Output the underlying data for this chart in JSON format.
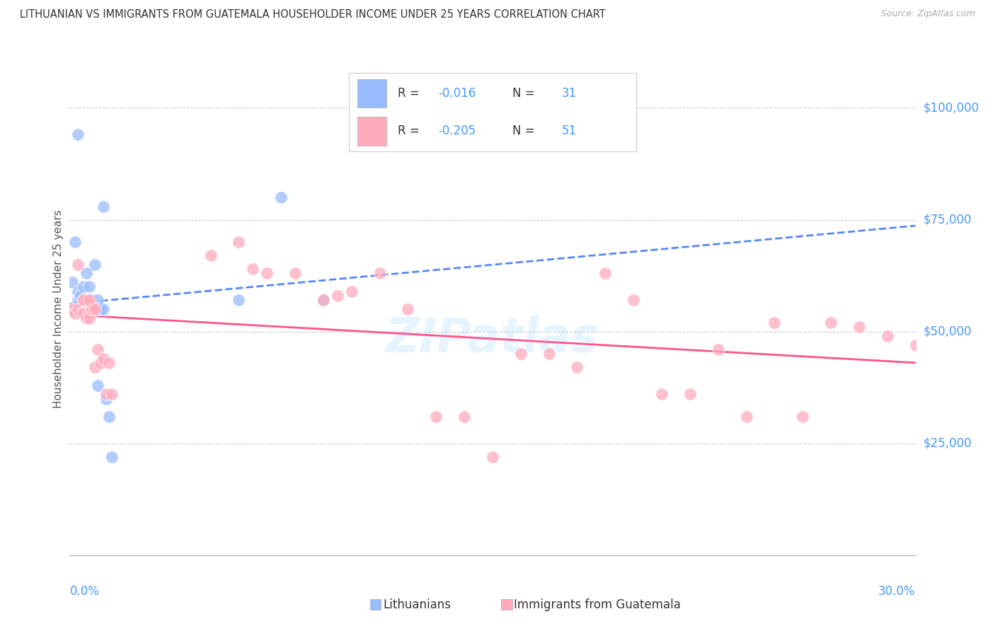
{
  "title": "LITHUANIAN VS IMMIGRANTS FROM GUATEMALA HOUSEHOLDER INCOME UNDER 25 YEARS CORRELATION CHART",
  "source": "Source: ZipAtlas.com",
  "ylabel": "Householder Income Under 25 years",
  "xlim": [
    0.0,
    0.3
  ],
  "ylim": [
    0,
    110000
  ],
  "ytick_positions": [
    25000,
    50000,
    75000,
    100000
  ],
  "ytick_labels": [
    "$25,000",
    "$50,000",
    "$75,000",
    "$100,000"
  ],
  "background_color": "#ffffff",
  "grid_color": "#cccccc",
  "series1_color": "#99bbff",
  "series2_color": "#ffaabb",
  "trendline1_color": "#5588ff",
  "trendline2_color": "#ff5588",
  "axis_label_color": "#4499ff",
  "legend_text_color": "#333333",
  "legend_value_color": "#4499ff",
  "r1": "-0.016",
  "n1": "31",
  "r2": "-0.205",
  "n2": "51",
  "lith_x": [
    0.001,
    0.002,
    0.002,
    0.003,
    0.003,
    0.003,
    0.004,
    0.004,
    0.005,
    0.005,
    0.005,
    0.006,
    0.006,
    0.007,
    0.007,
    0.007,
    0.008,
    0.008,
    0.009,
    0.01,
    0.011,
    0.012,
    0.013,
    0.014,
    0.015,
    0.06,
    0.075,
    0.09,
    0.003,
    0.01,
    0.012
  ],
  "lith_y": [
    61000,
    55000,
    70000,
    57000,
    59000,
    56000,
    55000,
    58000,
    55000,
    57000,
    60000,
    54000,
    63000,
    55000,
    57000,
    60000,
    57000,
    54000,
    65000,
    38000,
    55000,
    55000,
    35000,
    31000,
    22000,
    57000,
    80000,
    57000,
    94000,
    57000,
    78000
  ],
  "guat_x": [
    0.001,
    0.002,
    0.003,
    0.003,
    0.004,
    0.005,
    0.005,
    0.006,
    0.006,
    0.007,
    0.007,
    0.008,
    0.008,
    0.009,
    0.01,
    0.011,
    0.012,
    0.013,
    0.014,
    0.015,
    0.06,
    0.065,
    0.07,
    0.08,
    0.09,
    0.095,
    0.1,
    0.11,
    0.12,
    0.13,
    0.14,
    0.15,
    0.16,
    0.17,
    0.18,
    0.19,
    0.2,
    0.21,
    0.22,
    0.23,
    0.24,
    0.25,
    0.26,
    0.27,
    0.28,
    0.29,
    0.3,
    0.005,
    0.007,
    0.009,
    0.05
  ],
  "guat_y": [
    55000,
    54000,
    65000,
    55000,
    54000,
    54000,
    57000,
    53000,
    57000,
    54000,
    53000,
    56000,
    55000,
    42000,
    46000,
    43000,
    44000,
    36000,
    43000,
    36000,
    70000,
    64000,
    63000,
    63000,
    57000,
    58000,
    59000,
    63000,
    55000,
    31000,
    31000,
    22000,
    45000,
    45000,
    42000,
    63000,
    57000,
    36000,
    36000,
    46000,
    31000,
    52000,
    31000,
    52000,
    51000,
    49000,
    47000,
    57000,
    57000,
    55000,
    67000
  ]
}
